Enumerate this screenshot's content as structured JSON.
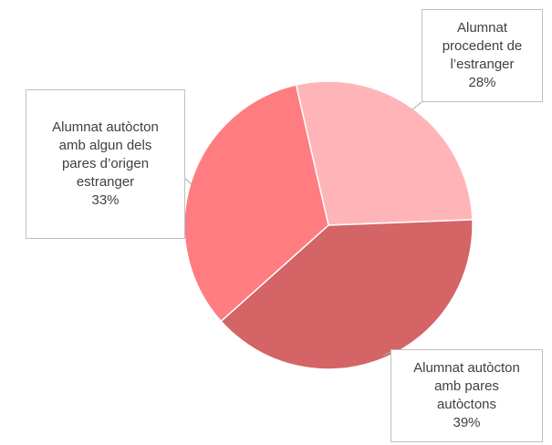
{
  "chart_data": {
    "type": "pie",
    "categories": [
      "Alumnat procedent de l’estranger",
      "Alumnat autòcton amb pares autòctons",
      "Alumnat autòcton amb algun dels pares d’origen estranger"
    ],
    "values": [
      28,
      39,
      33
    ],
    "value_labels": [
      "28%",
      "39%",
      "33%"
    ],
    "colors": [
      "#ffb5b8",
      "#d46466",
      "#ff7c80"
    ]
  }
}
